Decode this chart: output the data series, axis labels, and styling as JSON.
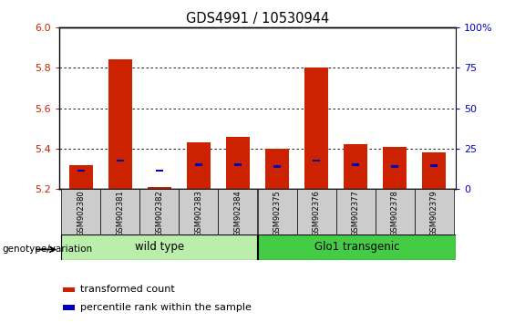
{
  "title": "GDS4991 / 10530944",
  "samples": [
    "GSM902380",
    "GSM902381",
    "GSM902382",
    "GSM902383",
    "GSM902384",
    "GSM902375",
    "GSM902376",
    "GSM902377",
    "GSM902378",
    "GSM902379"
  ],
  "red_values": [
    5.32,
    5.84,
    5.21,
    5.43,
    5.46,
    5.4,
    5.8,
    5.42,
    5.41,
    5.38
  ],
  "blue_values": [
    5.285,
    5.335,
    5.285,
    5.315,
    5.315,
    5.305,
    5.335,
    5.315,
    5.305,
    5.31
  ],
  "blue_heights": [
    0.012,
    0.012,
    0.012,
    0.012,
    0.012,
    0.012,
    0.012,
    0.012,
    0.012,
    0.012
  ],
  "ylim_left": [
    5.2,
    6.0
  ],
  "ylim_right": [
    0,
    100
  ],
  "y_ticks_left": [
    5.2,
    5.4,
    5.6,
    5.8,
    6.0
  ],
  "y_ticks_right": [
    0,
    25,
    50,
    75,
    100
  ],
  "y_ticks_right_labels": [
    "0",
    "25",
    "50",
    "75",
    "100%"
  ],
  "group_labels": [
    "wild type",
    "Glo1 transgenic"
  ],
  "wild_type_color": "#aaeea a",
  "glo1_color": "#44cc44",
  "bar_color_red": "#cc2200",
  "bar_color_blue": "#0000bb",
  "base_value": 5.2,
  "legend_red": "transformed count",
  "legend_blue": "percentile rank within the sample",
  "genotype_label": "genotype/variation",
  "tick_color_left": "#cc2200",
  "tick_color_right": "#0000cc",
  "sample_box_color": "#cccccc",
  "wild_type_box_color": "#bbeeaa",
  "glo1_box_color": "#44cc44"
}
